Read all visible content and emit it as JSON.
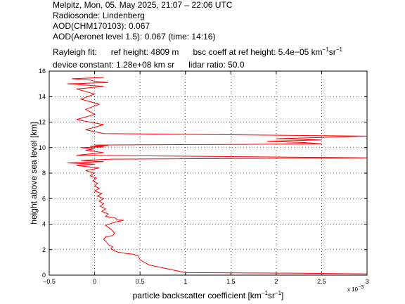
{
  "header": {
    "line1": "Melpitz, Mon, 05. May 2025, 21:07 – 22:06 UTC",
    "line2": "Radiosonde: Lindenberg",
    "line3": "AOD(CHM170103): 0.067",
    "line4": "AOD(Aeronet level 1.5): 0.067   (time: 14:16)",
    "rayleigh_label": "Rayleigh fit:",
    "ref_height": "ref height: 4809 m",
    "bsc_coeff_prefix": "bsc coeff at ref height: 5.4e−05 km",
    "bsc_coeff_exp1": "−1",
    "bsc_coeff_mid": "sr",
    "bsc_coeff_exp2": "−1",
    "device_constant": "device constant: 1.28e+08 km sr",
    "lidar_ratio": "lidar ratio: 50.0"
  },
  "chart_data": {
    "type": "line",
    "xlabel_prefix": "particle backscatter coefficient [km",
    "xlabel_exp1": "−1",
    "xlabel_mid": "sr",
    "xlabel_exp2": "−1",
    "xlabel_suffix": "]",
    "ylabel": "height above sea level [km]",
    "x_scale_label": "x 10",
    "x_scale_exp": "−3",
    "xlim": [
      -0.5,
      3
    ],
    "ylim": [
      0,
      16
    ],
    "x_ticks": [
      -0.5,
      0,
      0.5,
      1,
      1.5,
      2,
      2.5,
      3
    ],
    "x_tick_labels": [
      "−0.5",
      "0",
      "0.5",
      "1",
      "1.5",
      "2",
      "2.5",
      "3"
    ],
    "y_ticks": [
      0,
      2,
      4,
      6,
      8,
      10,
      12,
      14,
      16
    ],
    "y_tick_labels": [
      "0",
      "2",
      "4",
      "6",
      "8",
      "10",
      "12",
      "14",
      "16"
    ],
    "grid": true,
    "line_color": "#ff0000",
    "series": [
      {
        "x": [
          3.0,
          2.3,
          1.0,
          0.6,
          0.5,
          0.48,
          0.42,
          0.35,
          0.3,
          0.26,
          0.24,
          0.22,
          0.2,
          0.18,
          0.2,
          0.15,
          0.13,
          0.1,
          0.12,
          0.2,
          0.22,
          0.18,
          0.12,
          0.2,
          0.25,
          0.32,
          0.25,
          0.22,
          0.12,
          0.15,
          0.08,
          0.12,
          0.06,
          0.1,
          0.05,
          0.1,
          0.03,
          0.08,
          0.0,
          0.05,
          0.0,
          0.03,
          -0.02,
          0.02,
          -0.05,
          0.0,
          -0.1,
          0.05,
          -0.2,
          0.0,
          -0.3,
          0.1,
          -0.15,
          0.2,
          3.0,
          -0.2,
          0.1,
          -0.1,
          0.0,
          -0.15,
          0.1,
          -0.05,
          0.15,
          0.0,
          1.5,
          2.5,
          2.3,
          1.9,
          2.5,
          2.0,
          3.0,
          0.1,
          -0.1,
          0.1,
          -0.2,
          0.0,
          -0.1,
          0.05,
          -0.15,
          0.0,
          -0.2,
          0.1,
          -0.3,
          0.15,
          0.0,
          -0.05,
          -0.25,
          0.1
        ],
        "y": [
          0.1,
          0.15,
          0.2,
          0.8,
          1.2,
          1.5,
          1.65,
          1.7,
          1.75,
          1.8,
          1.85,
          1.9,
          2.0,
          2.1,
          2.2,
          2.4,
          2.6,
          2.8,
          3.0,
          3.1,
          3.3,
          3.6,
          3.9,
          4.1,
          4.2,
          4.3,
          4.35,
          4.5,
          4.6,
          4.8,
          5.0,
          5.2,
          5.4,
          5.6,
          5.8,
          6.0,
          6.2,
          6.4,
          6.6,
          6.8,
          7.0,
          7.2,
          7.4,
          7.6,
          7.8,
          8.0,
          8.2,
          8.4,
          8.6,
          8.7,
          8.8,
          8.9,
          9.0,
          9.1,
          9.2,
          9.4,
          9.6,
          9.8,
          9.9,
          10.0,
          10.05,
          10.1,
          10.15,
          10.2,
          10.25,
          10.3,
          10.4,
          10.5,
          10.6,
          10.7,
          10.9,
          11.1,
          11.4,
          11.8,
          12.2,
          12.6,
          13.0,
          13.4,
          13.8,
          14.2,
          14.6,
          14.8,
          15.0,
          15.1,
          15.2,
          15.3,
          15.4,
          15.5
        ]
      }
    ]
  }
}
